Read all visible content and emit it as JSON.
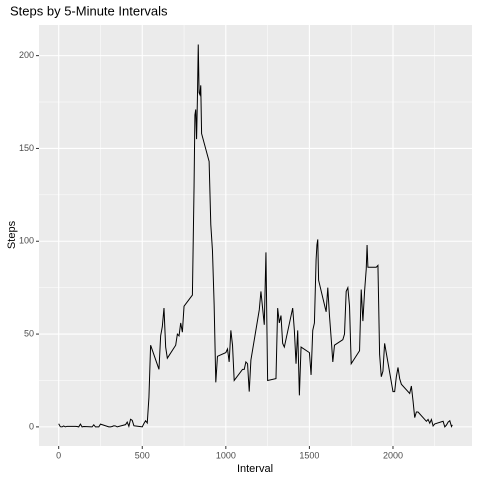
{
  "chart_data": {
    "type": "line",
    "title": "Steps by 5-Minute Intervals",
    "x_label": "Interval",
    "y_label": "Steps",
    "x": [
      0,
      10,
      20,
      30,
      40,
      50,
      100,
      110,
      120,
      130,
      140,
      150,
      200,
      210,
      220,
      230,
      240,
      250,
      300,
      310,
      320,
      330,
      340,
      350,
      400,
      410,
      420,
      430,
      440,
      450,
      500,
      510,
      520,
      530,
      540,
      550,
      600,
      610,
      620,
      630,
      640,
      650,
      700,
      710,
      720,
      730,
      740,
      750,
      800,
      810,
      815,
      820,
      825,
      830,
      835,
      840,
      845,
      850,
      855,
      900,
      910,
      920,
      930,
      940,
      950,
      1000,
      1010,
      1020,
      1030,
      1040,
      1050,
      1100,
      1110,
      1120,
      1130,
      1140,
      1150,
      1200,
      1210,
      1220,
      1230,
      1240,
      1250,
      1300,
      1310,
      1320,
      1330,
      1340,
      1350,
      1400,
      1410,
      1420,
      1430,
      1440,
      1450,
      1500,
      1510,
      1520,
      1530,
      1540,
      1545,
      1550,
      1555,
      1600,
      1610,
      1620,
      1630,
      1640,
      1650,
      1700,
      1710,
      1720,
      1730,
      1740,
      1750,
      1800,
      1810,
      1820,
      1830,
      1840,
      1845,
      1850,
      1855,
      1900,
      1910,
      1920,
      1930,
      1940,
      1950,
      2000,
      2010,
      2020,
      2030,
      2040,
      2050,
      2100,
      2110,
      2120,
      2130,
      2140,
      2150,
      2200,
      2210,
      2220,
      2230,
      2240,
      2250,
      2300,
      2310,
      2320,
      2330,
      2340,
      2350,
      2355
    ],
    "values": [
      1.7,
      0.1,
      0,
      0.5,
      0,
      0.3,
      0.3,
      0.2,
      0,
      1.5,
      0,
      0.2,
      0,
      1.1,
      0,
      0,
      0,
      1.5,
      0,
      0,
      0.2,
      0.6,
      0.5,
      0,
      1.2,
      2.6,
      0.3,
      4.1,
      3.5,
      0.6,
      0,
      1.8,
      3.3,
      2.1,
      16,
      44,
      31,
      49,
      54,
      64,
      43,
      37,
      44,
      50,
      49,
      56,
      51,
      65,
      71,
      130,
      168,
      171,
      155,
      177,
      206,
      180,
      179,
      184,
      158,
      143,
      109,
      95,
      66,
      24,
      38,
      40,
      42,
      35,
      52,
      44,
      25,
      31,
      31,
      35,
      34,
      19,
      36,
      63,
      73,
      64,
      55,
      94,
      25,
      26,
      64,
      56,
      60,
      45,
      43,
      64,
      52,
      34,
      52,
      17,
      43,
      40,
      28,
      52,
      56,
      90,
      98,
      101,
      79,
      62,
      75,
      60,
      48,
      35,
      44,
      47,
      50,
      73,
      75,
      65,
      34,
      41,
      74,
      57,
      73,
      85,
      98,
      86,
      86,
      86,
      87,
      39,
      27,
      30,
      45,
      19,
      19,
      27,
      32,
      26,
      23,
      18,
      22,
      14,
      5,
      8,
      8,
      3,
      4,
      2,
      4,
      0.5,
      1.6,
      3,
      0,
      1,
      2.6,
      3.3,
      0.2,
      1.1
    ],
    "color": "#000000",
    "xlim": [
      -117.75,
      2472.75
    ],
    "xticks": [
      0,
      500,
      1000,
      1500,
      2000
    ],
    "ylim": [
      -10.3,
      216.5
    ],
    "yticks": [
      0,
      50,
      100,
      150,
      200
    ],
    "grid": true
  }
}
